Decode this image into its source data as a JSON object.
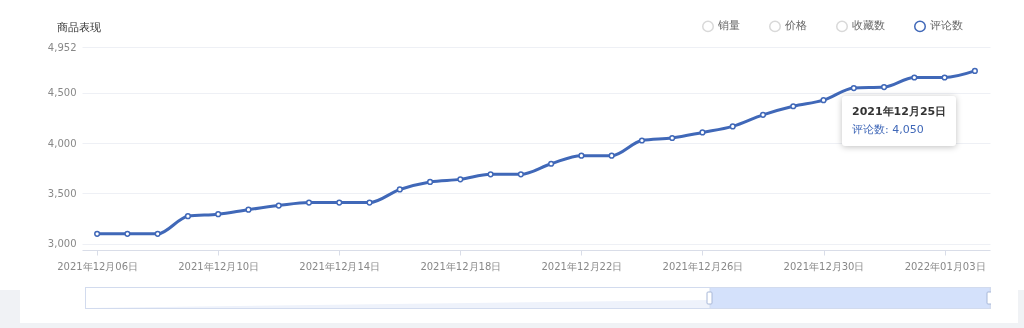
{
  "chart_data": {
    "type": "line",
    "title": "商品表现",
    "categories": [
      "2021年12月06日",
      null,
      null,
      null,
      "2021年12月10日",
      null,
      null,
      null,
      "2021年12月14日",
      null,
      null,
      null,
      "2021年12月18日",
      null,
      null,
      null,
      "2021年12月22日",
      null,
      null,
      null,
      "2021年12月26日",
      null,
      null,
      null,
      "2021年12月30日",
      null,
      null,
      null,
      "2022年01月03日",
      null
    ],
    "series": [
      {
        "name": "销量",
        "color": "#d9d9d9",
        "values": [
          null,
          null,
          null,
          null,
          null,
          null,
          null,
          null,
          null,
          null,
          null,
          null,
          null,
          null,
          null,
          null,
          null,
          null,
          null,
          null,
          null,
          null,
          null,
          null,
          null,
          null,
          null,
          null,
          null,
          null
        ]
      },
      {
        "name": "价格",
        "color": "#d9d9d9",
        "values": [
          null,
          null,
          null,
          null,
          null,
          null,
          null,
          null,
          null,
          null,
          null,
          null,
          null,
          null,
          null,
          null,
          null,
          null,
          null,
          null,
          null,
          null,
          null,
          null,
          null,
          null,
          null,
          null,
          null,
          null
        ]
      },
      {
        "name": "收藏数",
        "color": "#d9d9d9",
        "values": [
          null,
          null,
          null,
          null,
          null,
          null,
          null,
          null,
          null,
          null,
          null,
          null,
          null,
          null,
          null,
          null,
          null,
          null,
          null,
          null,
          null,
          null,
          null,
          null,
          null,
          null,
          null,
          null,
          null,
          null
        ]
      },
      {
        "name": "评论数",
        "color": "#4068b8",
        "values": [
          3100,
          3100,
          3100,
          3275,
          3295,
          3340,
          3380,
          3410,
          3410,
          3410,
          3540,
          3615,
          3640,
          3690,
          3690,
          3795,
          3875,
          3875,
          4025,
          4050,
          4105,
          4165,
          4280,
          4365,
          4425,
          4545,
          4555,
          4650,
          4650,
          4715
        ]
      }
    ],
    "ylim": [
      2940,
      4952
    ],
    "yticks": [
      {
        "value": 3000,
        "label": "3,000"
      },
      {
        "value": 3500,
        "label": "3,500"
      },
      {
        "value": 4000,
        "label": "4,000"
      },
      {
        "value": 4500,
        "label": "4,500"
      },
      {
        "value": 4952,
        "label": "4,952"
      }
    ],
    "grid": "y",
    "legend": "top right",
    "marker": "circle",
    "line_style": "solid",
    "annotations": [
      "2021年12月25日",
      "评论数: 4,050"
    ]
  }
}
